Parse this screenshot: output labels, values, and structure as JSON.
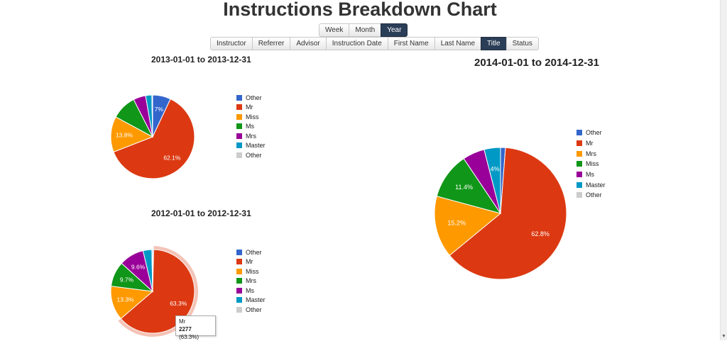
{
  "page": {
    "title": "Instructions Breakdown Chart"
  },
  "period_buttons": [
    {
      "label": "Week",
      "active": false
    },
    {
      "label": "Month",
      "active": false
    },
    {
      "label": "Year",
      "active": true
    }
  ],
  "field_buttons": [
    {
      "label": "Instructor",
      "active": false
    },
    {
      "label": "Referrer",
      "active": false
    },
    {
      "label": "Advisor",
      "active": false
    },
    {
      "label": "Instruction Date",
      "active": false
    },
    {
      "label": "First Name",
      "active": false
    },
    {
      "label": "Last Name",
      "active": false
    },
    {
      "label": "Title",
      "active": true
    },
    {
      "label": "Status",
      "active": false
    }
  ],
  "tooltip": {
    "label": "Mr",
    "value": "2277",
    "pct": "(63.3%)"
  },
  "chart_data": [
    {
      "type": "pie",
      "title": "2013-01-01 to 2013-12-31",
      "slices": [
        {
          "label": "Other",
          "value": 7.0,
          "color": "#3366cc",
          "data_label": "7%"
        },
        {
          "label": "Mr",
          "value": 62.1,
          "color": "#dc3912",
          "data_label": "62.1%"
        },
        {
          "label": "Miss",
          "value": 13.8,
          "color": "#ff9900",
          "data_label": "13.8%"
        },
        {
          "label": "Ms",
          "value": 9.6,
          "color": "#109618",
          "data_label": ""
        },
        {
          "label": "Mrs",
          "value": 4.8,
          "color": "#990099",
          "data_label": ""
        },
        {
          "label": "Master",
          "value": 2.4,
          "color": "#0099c6",
          "data_label": ""
        },
        {
          "label": "Other",
          "value": 0.3,
          "color": "#cccccc",
          "data_label": ""
        }
      ]
    },
    {
      "type": "pie",
      "title": "2012-01-01 to 2012-12-31",
      "slices": [
        {
          "label": "Other",
          "value": 0.4,
          "color": "#3366cc",
          "data_label": ""
        },
        {
          "label": "Mr",
          "value": 63.3,
          "color": "#dc3912",
          "data_label": "63.3%"
        },
        {
          "label": "Miss",
          "value": 13.3,
          "color": "#ff9900",
          "data_label": "13.3%"
        },
        {
          "label": "Mrs",
          "value": 9.7,
          "color": "#109618",
          "data_label": "9.7%"
        },
        {
          "label": "Ms",
          "value": 9.6,
          "color": "#990099",
          "data_label": "9.6%"
        },
        {
          "label": "Master",
          "value": 3.4,
          "color": "#0099c6",
          "data_label": ""
        },
        {
          "label": "Other",
          "value": 0.3,
          "color": "#cccccc",
          "data_label": ""
        }
      ]
    },
    {
      "type": "pie",
      "title": "2014-01-01 to 2014-12-31",
      "slices": [
        {
          "label": "Other",
          "value": 1.2,
          "color": "#3366cc",
          "data_label": ""
        },
        {
          "label": "Mr",
          "value": 62.8,
          "color": "#dc3912",
          "data_label": "62.8%"
        },
        {
          "label": "Mrs",
          "value": 15.2,
          "color": "#ff9900",
          "data_label": "15.2%"
        },
        {
          "label": "Miss",
          "value": 11.4,
          "color": "#109618",
          "data_label": "11.4%"
        },
        {
          "label": "Ms",
          "value": 5.4,
          "color": "#990099",
          "data_label": ""
        },
        {
          "label": "Master",
          "value": 4.0,
          "color": "#0099c6",
          "data_label": "4%"
        },
        {
          "label": "Other",
          "value": 0.0,
          "color": "#cccccc",
          "data_label": ""
        }
      ]
    }
  ]
}
